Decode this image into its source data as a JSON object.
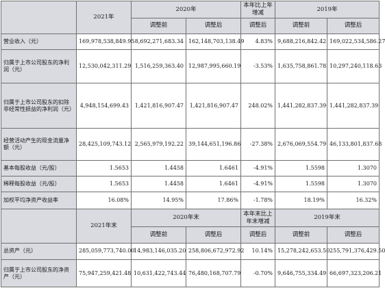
{
  "table1": {
    "headers": {
      "y2021": "2021年",
      "y2020": "2020年",
      "change": "本年比上年增减",
      "y2019": "2019年",
      "before_adj": "调整前",
      "after_adj": "调整后",
      "after_adj_change": "调整后"
    },
    "rows": [
      {
        "label": "营业收入（元）",
        "v2021": "169,978,538,849.95",
        "v2020_before": "8,692,271,683.34",
        "v2020_after": "162,148,703,138.49",
        "change": "4.83%",
        "v2019_before": "9,688,216,842.42",
        "v2019_after": "169,022,534,586.27"
      },
      {
        "label": "归属于上市公司股东的净利润（元）",
        "v2021": "12,530,042,311.29",
        "v2020_before": "1,516,259,363.40",
        "v2020_after": "12,987,995,660.19",
        "change": "-3.53%",
        "v2019_before": "1,635,758,861.78",
        "v2019_after": "10,297,240,118.63"
      },
      {
        "label": "归属于上市公司股东的扣除非经常性损益的净利润（元）",
        "v2021": "4,948,154,699.43",
        "v2020_before": "1,421,816,907.47",
        "v2020_after": "1,421,816,907.47",
        "change": "248.02%",
        "v2019_before": "1,441,282,837.39",
        "v2019_after": "1,441,282,837.39"
      },
      {
        "label": "经营活动产生的现金流量净额（元）",
        "v2021": "28,425,109,743.12",
        "v2020_before": "2,565,979,192.22",
        "v2020_after": "39,144,651,196.86",
        "change": "-27.38%",
        "v2019_before": "2,676,069,554.79",
        "v2019_after": "46,133,801,837.68"
      },
      {
        "label": "基本每股收益（元/股）",
        "v2021": "1.5653",
        "v2020_before": "1.4458",
        "v2020_after": "1.6461",
        "change": "-4.91%",
        "v2019_before": "1.5598",
        "v2019_after": "1.3070"
      },
      {
        "label": "稀释每股收益（元/股）",
        "v2021": "1.5653",
        "v2020_before": "1.4458",
        "v2020_after": "1.6461",
        "change": "-4.91%",
        "v2019_before": "1.5598",
        "v2019_after": "1.3070"
      },
      {
        "label": "加权平均净资产收益率",
        "v2021": "16.08%",
        "v2020_before": "14.95%",
        "v2020_after": "17.86%",
        "change": "-1.78%",
        "v2019_before": "18.19%",
        "v2019_after": "16.32%"
      }
    ]
  },
  "table2": {
    "headers": {
      "y2021_end": "2021年末",
      "y2020_end": "2020年末",
      "change": "本年末比上年末增减",
      "y2019_end": "2019年末",
      "before_adj": "调整前",
      "after_adj": "调整后",
      "after_adj_change": "调整后"
    },
    "rows": [
      {
        "label": "总资产（元）",
        "v2021": "285,059,773,740.00",
        "v2020_before": "14,983,146,035.20",
        "v2020_after": "258,806,672,972.92",
        "change": "10.14%",
        "v2019_before": "15,278,242,653.50",
        "v2019_after": "255,791,376,429.50"
      },
      {
        "label": "归属于上市公司股东的净资产（元）",
        "v2021": "75,947,259,421.48",
        "v2020_before": "10,631,422,743.44",
        "v2020_after": "76,480,168,707.79",
        "change": "-0.70%",
        "v2019_before": "9,646,755,334.49",
        "v2019_after": "66,697,323,206.21"
      }
    ]
  }
}
